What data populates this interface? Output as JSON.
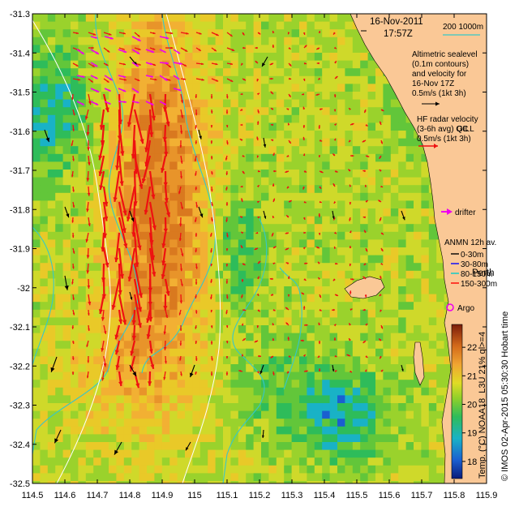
{
  "map": {
    "lon_ticks": [
      "114.5",
      "114.6",
      "114.7",
      "114.8",
      "114.9",
      "115",
      "115.1",
      "115.2",
      "115.3",
      "115.4",
      "115.5",
      "115.6",
      "115.7",
      "115.8",
      "115.9"
    ],
    "lat_ticks": [
      "-31.3",
      "-31.4",
      "-31.5",
      "-31.6",
      "-31.7",
      "-31.8",
      "-31.9",
      "-32",
      "-32.1",
      "-32.2",
      "-32.3",
      "-32.4",
      "-32.5"
    ],
    "lon_range": [
      114.5,
      115.9
    ],
    "lat_range": [
      -32.5,
      -31.3
    ]
  },
  "header": {
    "date": "16-Nov-2011",
    "time": "17:57Z",
    "scale_label": "200  1000m"
  },
  "legend": {
    "altimetric": [
      "Altimetric sealevel",
      "(0.1m contours)",
      "and velocity for",
      "16-Nov 17Z",
      "0.5m/s (1kt 3h)"
    ],
    "hf_radar": [
      "HF radar velocity",
      "(3-6h avg) QC",
      "0.5m/s (1kt 3h)"
    ],
    "drifter": "drifter",
    "anmn_title": "ANMN 12h av.",
    "anmn_items": [
      "0-30m",
      "30-80m",
      "80-150m",
      "150-300m"
    ],
    "argo": "Argo",
    "perth": "Perth",
    "gill_label": "GILL"
  },
  "colorbar": {
    "ticks": [
      "22",
      "21",
      "20",
      "19",
      "18"
    ],
    "title": "Temp. (°C) NOAA18_L3U 21% ql>=4"
  },
  "credit": "© IMOS 02-Apr-2015 05:30:30 Hobart time",
  "colors": {
    "land": "#fac896",
    "hf_arrow": "#ee1111",
    "drifter": "#ee00ee",
    "contour": "#36c8c8",
    "bathy": "#ffffff",
    "anmn_0_30": "#000000",
    "anmn_30_80": "#0000ff",
    "anmn_80_150": "#00cccc",
    "anmn_150_300": "#ff0000"
  }
}
